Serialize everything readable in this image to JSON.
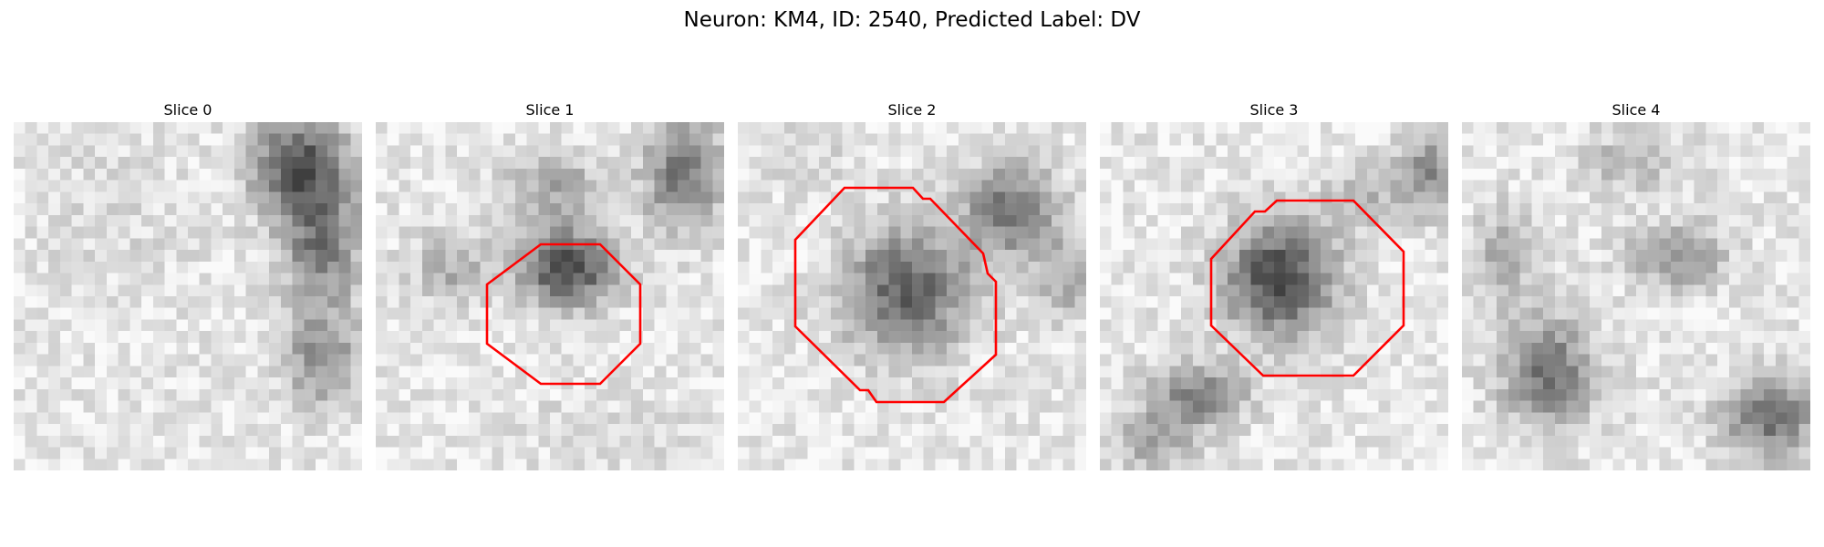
{
  "figure": {
    "suptitle": "Neuron: KM4, ID: 2540, Predicted Label: DV",
    "overlay_color": "#ff0000",
    "panels": [
      {
        "title": "Slice 0",
        "contour": false
      },
      {
        "title": "Slice 1",
        "contour": true
      },
      {
        "title": "Slice 2",
        "contour": true
      },
      {
        "title": "Slice 3",
        "contour": true
      },
      {
        "title": "Slice 4",
        "contour": false
      }
    ]
  }
}
